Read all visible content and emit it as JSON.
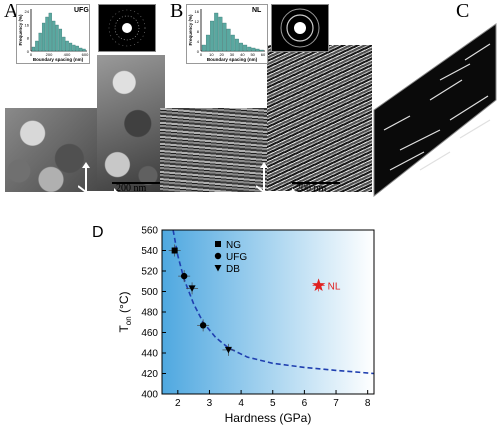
{
  "panels": {
    "A": {
      "letter": "A",
      "inset_label": "UFG",
      "hist_ylabel": "Frequency (%)",
      "hist_xlabel": "Boundary spacing (nm)",
      "hist_xticks": [
        "0",
        "200",
        "400",
        "600"
      ],
      "hist_yticks": [
        "0",
        "8",
        "16",
        "24"
      ],
      "scale_bar": "200 nm"
    },
    "B": {
      "letter": "B",
      "inset_label": "NL",
      "hist_ylabel": "Frequency (%)",
      "hist_xlabel": "Boundary spacing (nm)",
      "hist_xticks": [
        "0",
        "10",
        "20",
        "30",
        "40",
        "50",
        "60"
      ],
      "hist_yticks": [
        "0",
        "4",
        "8",
        "12",
        "16"
      ],
      "scale_bar": "200 nm"
    },
    "C": {
      "letter": "C"
    },
    "D": {
      "letter": "D"
    }
  },
  "chart_data": {
    "type": "scatter",
    "xlabel": "Hardness (GPa)",
    "ylabel": "T",
    "ylabel_sub": "on",
    "ylabel_unit": " (°C)",
    "xlim": [
      1.5,
      8.2
    ],
    "ylim": [
      400,
      560
    ],
    "xticks": [
      "2",
      "3",
      "4",
      "5",
      "6",
      "7",
      "8"
    ],
    "yticks": [
      "400",
      "420",
      "440",
      "460",
      "480",
      "500",
      "520",
      "540",
      "560"
    ],
    "legend": [
      "NG",
      "UFG",
      "DB"
    ],
    "series": [
      {
        "name": "NG",
        "marker": "square",
        "points": [
          {
            "x": 1.9,
            "y": 540
          }
        ]
      },
      {
        "name": "UFG",
        "marker": "circle",
        "points": [
          {
            "x": 2.2,
            "y": 515
          },
          {
            "x": 2.8,
            "y": 467
          }
        ]
      },
      {
        "name": "DB",
        "marker": "triangle",
        "points": [
          {
            "x": 2.45,
            "y": 503
          },
          {
            "x": 3.6,
            "y": 443
          }
        ]
      },
      {
        "name": "NL",
        "marker": "star",
        "color": "#e02020",
        "points": [
          {
            "x": 6.45,
            "y": 506
          }
        ]
      }
    ],
    "annotation": {
      "text": "NL",
      "color": "#e02020"
    },
    "fit_curve": {
      "style": "dashed",
      "color": "#1f3fb0",
      "x": [
        1.85,
        2.0,
        2.2,
        2.5,
        2.8,
        3.2,
        3.6,
        4.2,
        5.0,
        6.0,
        7.0,
        8.2
      ],
      "y": [
        560,
        535,
        512,
        488,
        470,
        455,
        445,
        436,
        430,
        426,
        423,
        420
      ]
    },
    "background_gradient": [
      "#4fa8e0",
      "#ffffff"
    ]
  }
}
